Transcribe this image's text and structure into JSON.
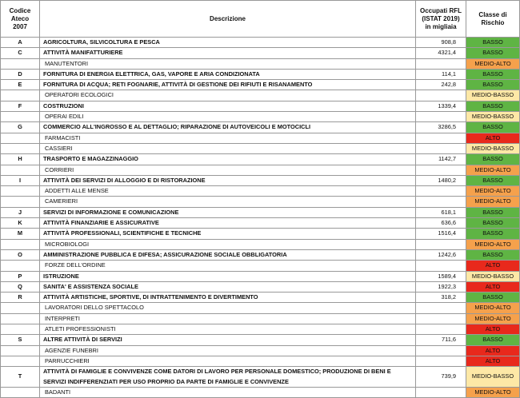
{
  "table": {
    "header": {
      "code": [
        "Codice",
        "Ateco",
        "2007"
      ],
      "description": [
        "Descrizione"
      ],
      "employed": [
        "Occupati RFL",
        "(ISTAT 2019)",
        "in migliaia"
      ],
      "risk": [
        "Classe di",
        "Rischio"
      ]
    },
    "rows": [
      {
        "code": "A",
        "description": "AGRICOLTURA, SILVICOLTURA E PESCA",
        "employed": "908,8",
        "risk": "BASSO",
        "color": "#5fb444"
      },
      {
        "code": "C",
        "description": "ATTIVITÀ MANIFATTURIERE",
        "employed": "4321,4",
        "risk": "BASSO",
        "color": "#5fb444"
      },
      {
        "description": "MANUTENTORI",
        "risk": "MEDIO-ALTO",
        "color": "#f5a14c"
      },
      {
        "code": "D",
        "description": "FORNITURA DI ENERGIA ELETTRICA, GAS, VAPORE E ARIA CONDIZIONATA",
        "employed": "114,1",
        "risk": "BASSO",
        "color": "#5fb444"
      },
      {
        "code": "E",
        "description": "FORNITURA DI ACQUA; RETI FOGNARIE, ATTIVITÀ DI GESTIONE DEI RIFIUTI E RISANAMENTO",
        "employed": "242,8",
        "risk": "BASSO",
        "color": "#5fb444"
      },
      {
        "description": "OPERATORI ECOLOGICI",
        "risk": "MEDIO-BASSO",
        "color": "#fde8a6"
      },
      {
        "code": "F",
        "description": "COSTRUZIONI",
        "employed": "1339,4",
        "risk": "BASSO",
        "color": "#5fb444"
      },
      {
        "description": "OPERAI EDILI",
        "risk": "MEDIO-BASSO",
        "color": "#fde8a6"
      },
      {
        "code": "G",
        "description": "COMMERCIO ALL'INGROSSO E AL DETTAGLIO; RIPARAZIONE DI AUTOVEICOLI E MOTOCICLI",
        "employed": "3286,5",
        "risk": "BASSO",
        "color": "#5fb444"
      },
      {
        "description": "FARMACISTI",
        "risk": "ALTO",
        "color": "#e8291c"
      },
      {
        "description": "CASSIERI",
        "risk": "MEDIO-BASSO",
        "color": "#fde8a6"
      },
      {
        "code": "H",
        "description": "TRASPORTO E MAGAZZINAGGIO",
        "employed": "1142,7",
        "risk": "BASSO",
        "color": "#5fb444"
      },
      {
        "description": "CORRIERI",
        "risk": "MEDIO-ALTO",
        "color": "#f5a14c"
      },
      {
        "code": "I",
        "description": "ATTIVITÀ DEI SERVIZI DI ALLOGGIO E DI RISTORAZIONE",
        "employed": "1480,2",
        "risk": "BASSO",
        "color": "#5fb444"
      },
      {
        "description": "ADDETTI ALLE MENSE",
        "risk": "MEDIO-ALTO",
        "color": "#f5a14c"
      },
      {
        "description": "CAMERIERI",
        "risk": "MEDIO-ALTO",
        "color": "#f5a14c"
      },
      {
        "code": "J",
        "description": "SERVIZI DI INFORMAZIONE E COMUNICAZIONE",
        "employed": "618,1",
        "risk": "BASSO",
        "color": "#5fb444"
      },
      {
        "code": "K",
        "description": "ATTIVITÀ FINANZIARIE E ASSICURATIVE",
        "employed": "636,6",
        "risk": "BASSO",
        "color": "#5fb444"
      },
      {
        "code": "M",
        "description": "ATTIVITÀ PROFESSIONALI, SCIENTIFICHE E TECNICHE",
        "employed": "1516,4",
        "risk": "BASSO",
        "color": "#5fb444"
      },
      {
        "description": "MICROBIOLOGI",
        "risk": "MEDIO-ALTO",
        "color": "#f5a14c"
      },
      {
        "code": "O",
        "description": "AMMINISTRAZIONE PUBBLICA E DIFESA; ASSICURAZIONE SOCIALE OBBLIGATORIA",
        "employed": "1242,6",
        "risk": "BASSO",
        "color": "#5fb444"
      },
      {
        "description": "FORZE DELL'ORDINE",
        "risk": "ALTO",
        "color": "#e8291c"
      },
      {
        "code": "P",
        "description": "ISTRUZIONE",
        "employed": "1589,4",
        "risk": "MEDIO-BASSO",
        "color": "#fde8a6"
      },
      {
        "code": "Q",
        "description": "SANITA' E ASSISTENZA SOCIALE",
        "employed": "1922,3",
        "risk": "ALTO",
        "color": "#e8291c"
      },
      {
        "code": "R",
        "description": "ATTIVITÀ ARTISTICHE, SPORTIVE, DI INTRATTENIMENTO E DIVERTIMENTO",
        "employed": "318,2",
        "risk": "BASSO",
        "color": "#5fb444"
      },
      {
        "description": "LAVORATORI DELLO SPETTACOLO",
        "risk": "MEDIO-ALTO",
        "color": "#f5a14c"
      },
      {
        "description": "INTERPRETI",
        "risk": "MEDIO-ALTO",
        "color": "#f5a14c"
      },
      {
        "description": "ATLETI PROFESSIONISTI",
        "risk": "ALTO",
        "color": "#e8291c"
      },
      {
        "code": "S",
        "description": "ALTRE ATTIVITÀ DI SERVIZI",
        "employed": "711,6",
        "risk": "BASSO",
        "color": "#5fb444"
      },
      {
        "description": "AGENZIE FUNEBRI",
        "risk": "ALTO",
        "color": "#e8291c"
      },
      {
        "description": "PARRUCCHIERI",
        "risk": "ALTO",
        "color": "#e8291c"
      },
      {
        "code": "T",
        "description": "ATTIVITÀ DI FAMIGLIE E CONVIVENZE COME DATORI DI LAVORO PER PERSONALE DOMESTICO; PRODUZIONE DI BENI E SERVIZI INDIFFERENZIATI PER USO PROPRIO  DA PARTE DI FAMIGLIE E CONVIVENZE",
        "employed": "739,9",
        "risk": "MEDIO-BASSO",
        "color": "#fde8a6"
      },
      {
        "description": "BADANTI",
        "risk": "MEDIO-ALTO",
        "color": "#f5a14c"
      }
    ]
  }
}
